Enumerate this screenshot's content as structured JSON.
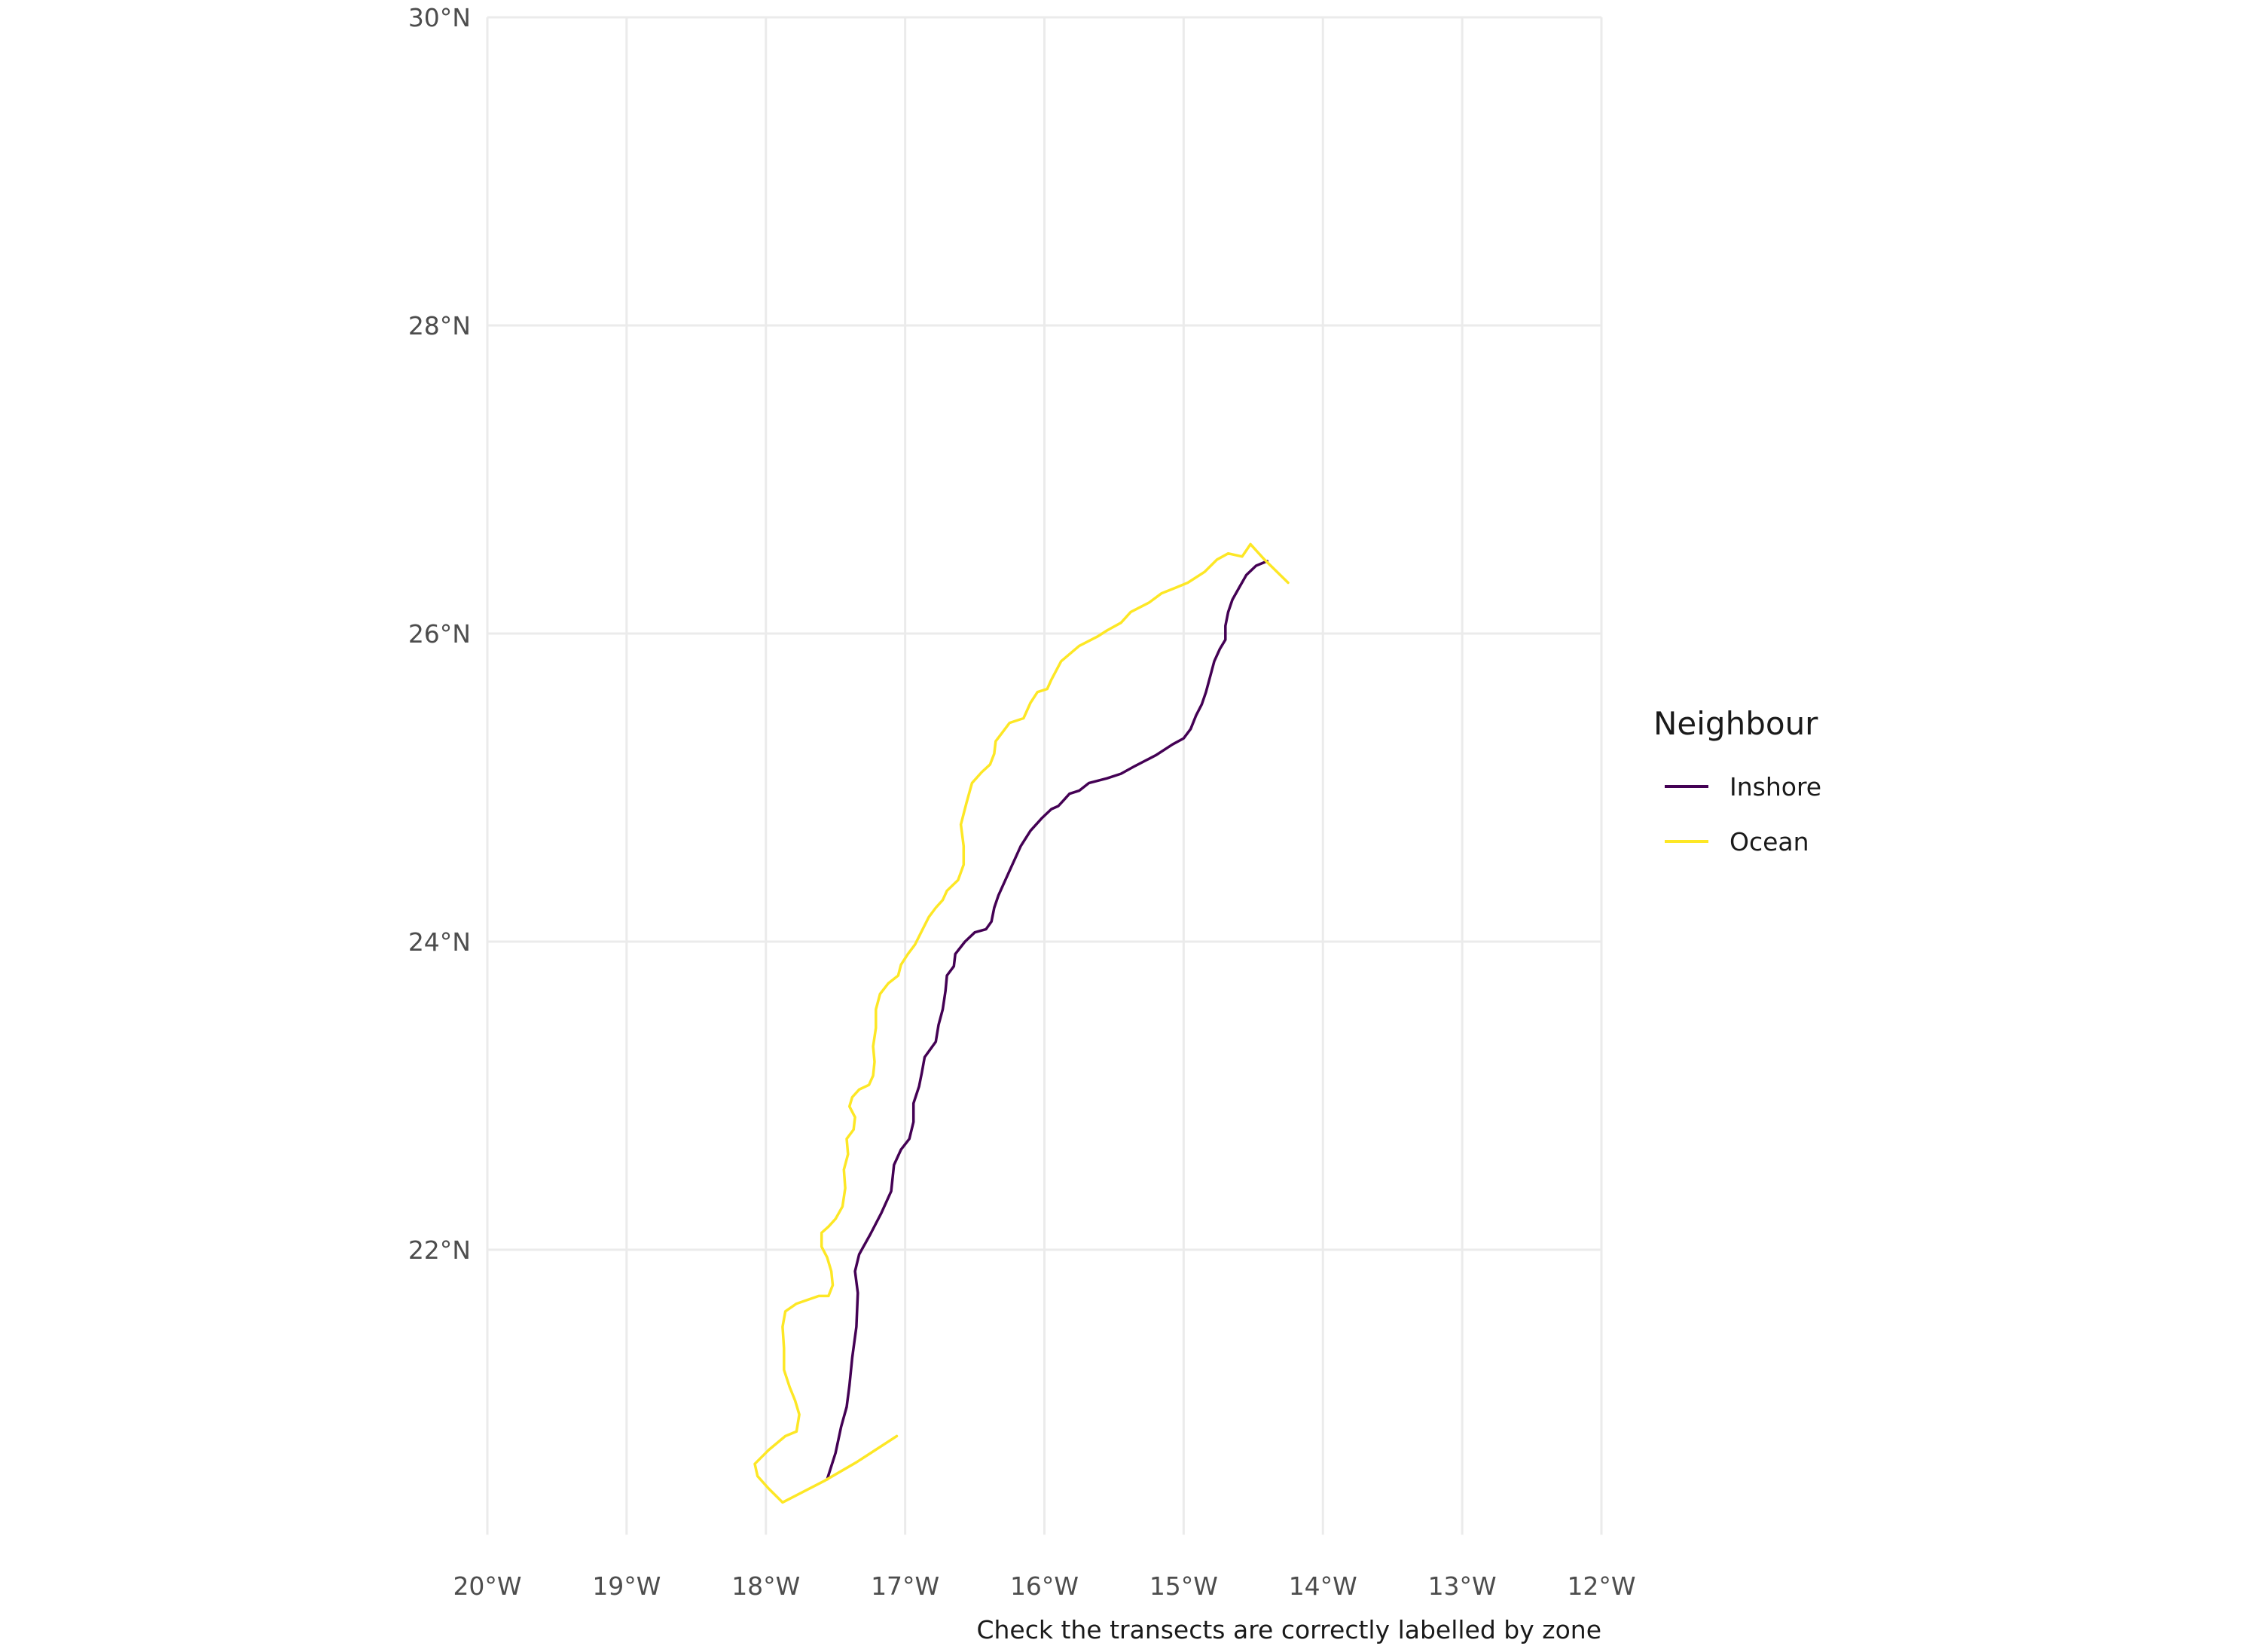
{
  "chart_data": {
    "type": "line",
    "title": "",
    "caption": "Check the transects are correctly labelled by zone",
    "xlabel": "",
    "ylabel": "",
    "xlim": [
      -20,
      -12
    ],
    "ylim": [
      20.15,
      30
    ],
    "x_ticks": [
      {
        "value": -20,
        "label": "20°W"
      },
      {
        "value": -19,
        "label": "19°W"
      },
      {
        "value": -18,
        "label": "18°W"
      },
      {
        "value": -17,
        "label": "17°W"
      },
      {
        "value": -16,
        "label": "16°W"
      },
      {
        "value": -15,
        "label": "15°W"
      },
      {
        "value": -14,
        "label": "14°W"
      },
      {
        "value": -13,
        "label": "13°W"
      },
      {
        "value": -12,
        "label": "12°W"
      }
    ],
    "y_ticks": [
      {
        "value": 22,
        "label": "22°N"
      },
      {
        "value": 24,
        "label": "24°N"
      },
      {
        "value": 26,
        "label": "26°N"
      },
      {
        "value": 28,
        "label": "28°N"
      },
      {
        "value": 30,
        "label": "30°N"
      }
    ],
    "grid": true,
    "legend": {
      "title": "Neighbour",
      "position": "right"
    },
    "series": [
      {
        "name": "Inshore",
        "color": "#440154",
        "points": [
          [
            -17.56,
            20.51
          ],
          [
            -17.5,
            20.68
          ],
          [
            -17.46,
            20.85
          ],
          [
            -17.42,
            20.98
          ],
          [
            -17.4,
            21.12
          ],
          [
            -17.38,
            21.3
          ],
          [
            -17.35,
            21.5
          ],
          [
            -17.34,
            21.72
          ],
          [
            -17.36,
            21.86
          ],
          [
            -17.33,
            21.97
          ],
          [
            -17.25,
            22.1
          ],
          [
            -17.17,
            22.24
          ],
          [
            -17.1,
            22.38
          ],
          [
            -17.08,
            22.55
          ],
          [
            -17.03,
            22.65
          ],
          [
            -16.97,
            22.72
          ],
          [
            -16.94,
            22.83
          ],
          [
            -16.94,
            22.95
          ],
          [
            -16.9,
            23.06
          ],
          [
            -16.88,
            23.15
          ],
          [
            -16.86,
            23.25
          ],
          [
            -16.78,
            23.35
          ],
          [
            -16.76,
            23.46
          ],
          [
            -16.73,
            23.56
          ],
          [
            -16.71,
            23.68
          ],
          [
            -16.7,
            23.78
          ],
          [
            -16.65,
            23.84
          ],
          [
            -16.64,
            23.92
          ],
          [
            -16.57,
            24.0
          ],
          [
            -16.5,
            24.06
          ],
          [
            -16.42,
            24.08
          ],
          [
            -16.38,
            24.13
          ],
          [
            -16.36,
            24.22
          ],
          [
            -16.33,
            24.3
          ],
          [
            -16.28,
            24.4
          ],
          [
            -16.22,
            24.52
          ],
          [
            -16.17,
            24.62
          ],
          [
            -16.1,
            24.72
          ],
          [
            -16.02,
            24.8
          ],
          [
            -15.95,
            24.86
          ],
          [
            -15.9,
            24.88
          ],
          [
            -15.86,
            24.92
          ],
          [
            -15.82,
            24.96
          ],
          [
            -15.75,
            24.98
          ],
          [
            -15.68,
            25.03
          ],
          [
            -15.55,
            25.06
          ],
          [
            -15.45,
            25.09
          ],
          [
            -15.35,
            25.14
          ],
          [
            -15.2,
            25.21
          ],
          [
            -15.08,
            25.28
          ],
          [
            -15.0,
            25.32
          ],
          [
            -14.95,
            25.38
          ],
          [
            -14.91,
            25.47
          ],
          [
            -14.87,
            25.54
          ],
          [
            -14.84,
            25.62
          ],
          [
            -14.81,
            25.72
          ],
          [
            -14.78,
            25.82
          ],
          [
            -14.74,
            25.9
          ],
          [
            -14.7,
            25.96
          ],
          [
            -14.7,
            26.05
          ],
          [
            -14.68,
            26.14
          ],
          [
            -14.65,
            26.22
          ],
          [
            -14.6,
            26.3
          ],
          [
            -14.55,
            26.38
          ],
          [
            -14.48,
            26.44
          ],
          [
            -14.4,
            26.47
          ]
        ]
      },
      {
        "name": "Ocean",
        "color": "#fde725",
        "points": [
          [
            -17.06,
            20.79
          ],
          [
            -17.35,
            20.62
          ],
          [
            -17.58,
            20.5
          ],
          [
            -17.88,
            20.36
          ],
          [
            -17.98,
            20.45
          ],
          [
            -18.06,
            20.53
          ],
          [
            -18.08,
            20.61
          ],
          [
            -17.98,
            20.7
          ],
          [
            -17.86,
            20.79
          ],
          [
            -17.78,
            20.82
          ],
          [
            -17.76,
            20.93
          ],
          [
            -17.79,
            21.02
          ],
          [
            -17.83,
            21.11
          ],
          [
            -17.87,
            21.22
          ],
          [
            -17.87,
            21.36
          ],
          [
            -17.88,
            21.5
          ],
          [
            -17.86,
            21.6
          ],
          [
            -17.78,
            21.65
          ],
          [
            -17.62,
            21.7
          ],
          [
            -17.55,
            21.7
          ],
          [
            -17.52,
            21.77
          ],
          [
            -17.53,
            21.86
          ],
          [
            -17.56,
            21.95
          ],
          [
            -17.6,
            22.02
          ],
          [
            -17.6,
            22.11
          ],
          [
            -17.55,
            22.15
          ],
          [
            -17.5,
            22.2
          ],
          [
            -17.45,
            22.28
          ],
          [
            -17.43,
            22.4
          ],
          [
            -17.44,
            22.52
          ],
          [
            -17.41,
            22.62
          ],
          [
            -17.42,
            22.72
          ],
          [
            -17.37,
            22.78
          ],
          [
            -17.36,
            22.86
          ],
          [
            -17.4,
            22.93
          ],
          [
            -17.38,
            22.99
          ],
          [
            -17.33,
            23.04
          ],
          [
            -17.26,
            23.07
          ],
          [
            -17.23,
            23.13
          ],
          [
            -17.22,
            23.22
          ],
          [
            -17.23,
            23.32
          ],
          [
            -17.21,
            23.44
          ],
          [
            -17.21,
            23.56
          ],
          [
            -17.18,
            23.66
          ],
          [
            -17.12,
            23.73
          ],
          [
            -17.05,
            23.78
          ],
          [
            -17.03,
            23.85
          ],
          [
            -16.98,
            23.92
          ],
          [
            -16.93,
            23.98
          ],
          [
            -16.88,
            24.07
          ],
          [
            -16.83,
            24.16
          ],
          [
            -16.78,
            24.22
          ],
          [
            -16.73,
            24.27
          ],
          [
            -16.7,
            24.33
          ],
          [
            -16.62,
            24.4
          ],
          [
            -16.58,
            24.5
          ],
          [
            -16.58,
            24.62
          ],
          [
            -16.6,
            24.76
          ],
          [
            -16.56,
            24.9
          ],
          [
            -16.52,
            25.03
          ],
          [
            -16.45,
            25.1
          ],
          [
            -16.39,
            25.15
          ],
          [
            -16.36,
            25.22
          ],
          [
            -16.35,
            25.3
          ],
          [
            -16.3,
            25.36
          ],
          [
            -16.25,
            25.42
          ],
          [
            -16.15,
            25.45
          ],
          [
            -16.1,
            25.55
          ],
          [
            -16.05,
            25.62
          ],
          [
            -15.98,
            25.64
          ],
          [
            -15.95,
            25.7
          ],
          [
            -15.88,
            25.82
          ],
          [
            -15.75,
            25.92
          ],
          [
            -15.62,
            25.98
          ],
          [
            -15.55,
            26.02
          ],
          [
            -15.45,
            26.07
          ],
          [
            -15.38,
            26.14
          ],
          [
            -15.25,
            26.2
          ],
          [
            -15.16,
            26.26
          ],
          [
            -15.05,
            26.3
          ],
          [
            -14.97,
            26.33
          ],
          [
            -14.85,
            26.4
          ],
          [
            -14.76,
            26.48
          ],
          [
            -14.68,
            26.52
          ],
          [
            -14.58,
            26.5
          ],
          [
            -14.52,
            26.58
          ],
          [
            -14.42,
            26.48
          ],
          [
            -14.25,
            26.33
          ]
        ]
      }
    ]
  }
}
